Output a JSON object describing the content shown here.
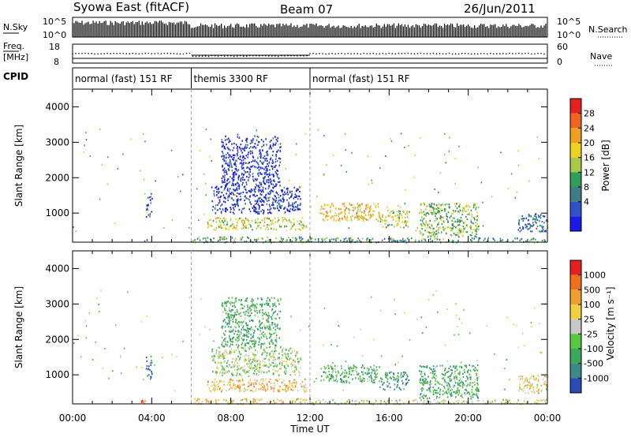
{
  "header": {
    "title": "Syowa East (fitACF)",
    "beam": "Beam 07",
    "date": "26/Jun/2011"
  },
  "strips": {
    "nsky": {
      "label": "N.Sky",
      "ticks": [
        "10^5",
        "10^0"
      ]
    },
    "nsearch": {
      "label": "N.Search",
      "ticks": [
        "10^5",
        "10^0"
      ]
    },
    "freq": {
      "label_line1": "Freq.",
      "label_line2": "[MHz]",
      "ticks": [
        18,
        8
      ]
    },
    "nave": {
      "label": "Nave",
      "ticks": [
        60,
        0
      ]
    },
    "cpid": {
      "label": "CPID",
      "segments": [
        {
          "label": "normal (fast) 151 RF",
          "start": 0,
          "end": 6
        },
        {
          "label": "themis 3300 RF",
          "start": 6,
          "end": 12
        },
        {
          "label": "normal (fast) 151 RF",
          "start": 12,
          "end": 24
        }
      ]
    }
  },
  "chart_data": [
    {
      "type": "heatmap",
      "name": "power",
      "ylabel": "Slant Range [km]",
      "xlabel": "Time UT",
      "xlim": [
        0,
        24
      ],
      "ylim": [
        180,
        4500
      ],
      "yticks": [
        1000,
        2000,
        3000,
        4000
      ],
      "xticks": [
        {
          "v": 0,
          "label": "00:00"
        },
        {
          "v": 4,
          "label": "04:00"
        },
        {
          "v": 8,
          "label": "08:00"
        },
        {
          "v": 12,
          "label": "12:00"
        },
        {
          "v": 16,
          "label": "16:00"
        },
        {
          "v": 20,
          "label": "20:00"
        },
        {
          "v": 24,
          "label": "00:00"
        }
      ],
      "colorbar": {
        "label": "Power [dB]",
        "ticks": [
          "4",
          "8",
          "12",
          "16",
          "20",
          "24",
          "28"
        ],
        "colors": [
          "#1a1ae6",
          "#2f52c8",
          "#3e7c86",
          "#2e9e58",
          "#a8c84a",
          "#f0d020",
          "#f0a020",
          "#f06420",
          "#e62020"
        ]
      },
      "echo_regions": [
        {
          "t0": 3.3,
          "t1": 3.8,
          "r0": 190,
          "r1": 300,
          "level": 0.15
        },
        {
          "t0": 3.7,
          "t1": 4.0,
          "r0": 900,
          "r1": 1600,
          "level": 0.2
        },
        {
          "t0": 6.0,
          "t1": 12.0,
          "r0": 190,
          "r1": 350,
          "level": 0.4
        },
        {
          "t0": 6.8,
          "t1": 11.8,
          "r0": 550,
          "r1": 900,
          "level": 0.55
        },
        {
          "t0": 7.0,
          "t1": 11.5,
          "r0": 1000,
          "r1": 1800,
          "level": 0.12
        },
        {
          "t0": 7.5,
          "t1": 10.5,
          "r0": 1800,
          "r1": 3200,
          "level": 0.1
        },
        {
          "t0": 12.5,
          "t1": 15.5,
          "r0": 800,
          "r1": 1300,
          "level": 0.65
        },
        {
          "t0": 15.5,
          "t1": 17.0,
          "r0": 600,
          "r1": 1100,
          "level": 0.55
        },
        {
          "t0": 17.5,
          "t1": 20.5,
          "r0": 350,
          "r1": 1300,
          "level": 0.45
        },
        {
          "t0": 12.0,
          "t1": 24.0,
          "r0": 190,
          "r1": 320,
          "level": 0.35
        },
        {
          "t0": 22.5,
          "t1": 24.0,
          "r0": 500,
          "r1": 1000,
          "level": 0.25
        }
      ]
    },
    {
      "type": "heatmap",
      "name": "velocity",
      "ylabel": "Slant Range [km]",
      "xlabel": "Time UT",
      "xlim": [
        0,
        24
      ],
      "ylim": [
        180,
        4500
      ],
      "yticks": [
        1000,
        2000,
        3000,
        4000
      ],
      "xticks": [
        {
          "v": 0,
          "label": "00:00"
        },
        {
          "v": 4,
          "label": "04:00"
        },
        {
          "v": 8,
          "label": "08:00"
        },
        {
          "v": 12,
          "label": "12:00"
        },
        {
          "v": 16,
          "label": "16:00"
        },
        {
          "v": 20,
          "label": "20:00"
        },
        {
          "v": 24,
          "label": "00:00"
        }
      ],
      "colorbar": {
        "label": "Velocity [m s⁻¹]",
        "ticks": [
          "1000",
          "500",
          "100",
          "25",
          "-25",
          "-100",
          "-500",
          "-1000"
        ],
        "colors": [
          "#2a4ab8",
          "#3a8a8a",
          "#3aa858",
          "#58c840",
          "#c8c8c8",
          "#f0d040",
          "#f0a030",
          "#f07020",
          "#e62020"
        ]
      },
      "echo_regions": [
        {
          "t0": 3.3,
          "t1": 3.8,
          "r0": 190,
          "r1": 300,
          "level": 0.8
        },
        {
          "t0": 3.7,
          "t1": 4.0,
          "r0": 900,
          "r1": 1600,
          "level": 0.1
        },
        {
          "t0": 6.0,
          "t1": 12.0,
          "r0": 190,
          "r1": 350,
          "level": 0.6
        },
        {
          "t0": 6.8,
          "t1": 11.8,
          "r0": 550,
          "r1": 900,
          "level": 0.65
        },
        {
          "t0": 7.0,
          "t1": 11.5,
          "r0": 1000,
          "r1": 1800,
          "level": 0.45
        },
        {
          "t0": 7.5,
          "t1": 10.5,
          "r0": 1800,
          "r1": 3200,
          "level": 0.3
        },
        {
          "t0": 12.5,
          "t1": 15.5,
          "r0": 800,
          "r1": 1300,
          "level": 0.3
        },
        {
          "t0": 15.5,
          "t1": 17.0,
          "r0": 600,
          "r1": 1100,
          "level": 0.25
        },
        {
          "t0": 17.5,
          "t1": 20.5,
          "r0": 350,
          "r1": 1300,
          "level": 0.3
        },
        {
          "t0": 12.0,
          "t1": 24.0,
          "r0": 190,
          "r1": 320,
          "level": 0.5
        },
        {
          "t0": 22.5,
          "t1": 24.0,
          "r0": 500,
          "r1": 1000,
          "level": 0.6
        }
      ]
    }
  ]
}
